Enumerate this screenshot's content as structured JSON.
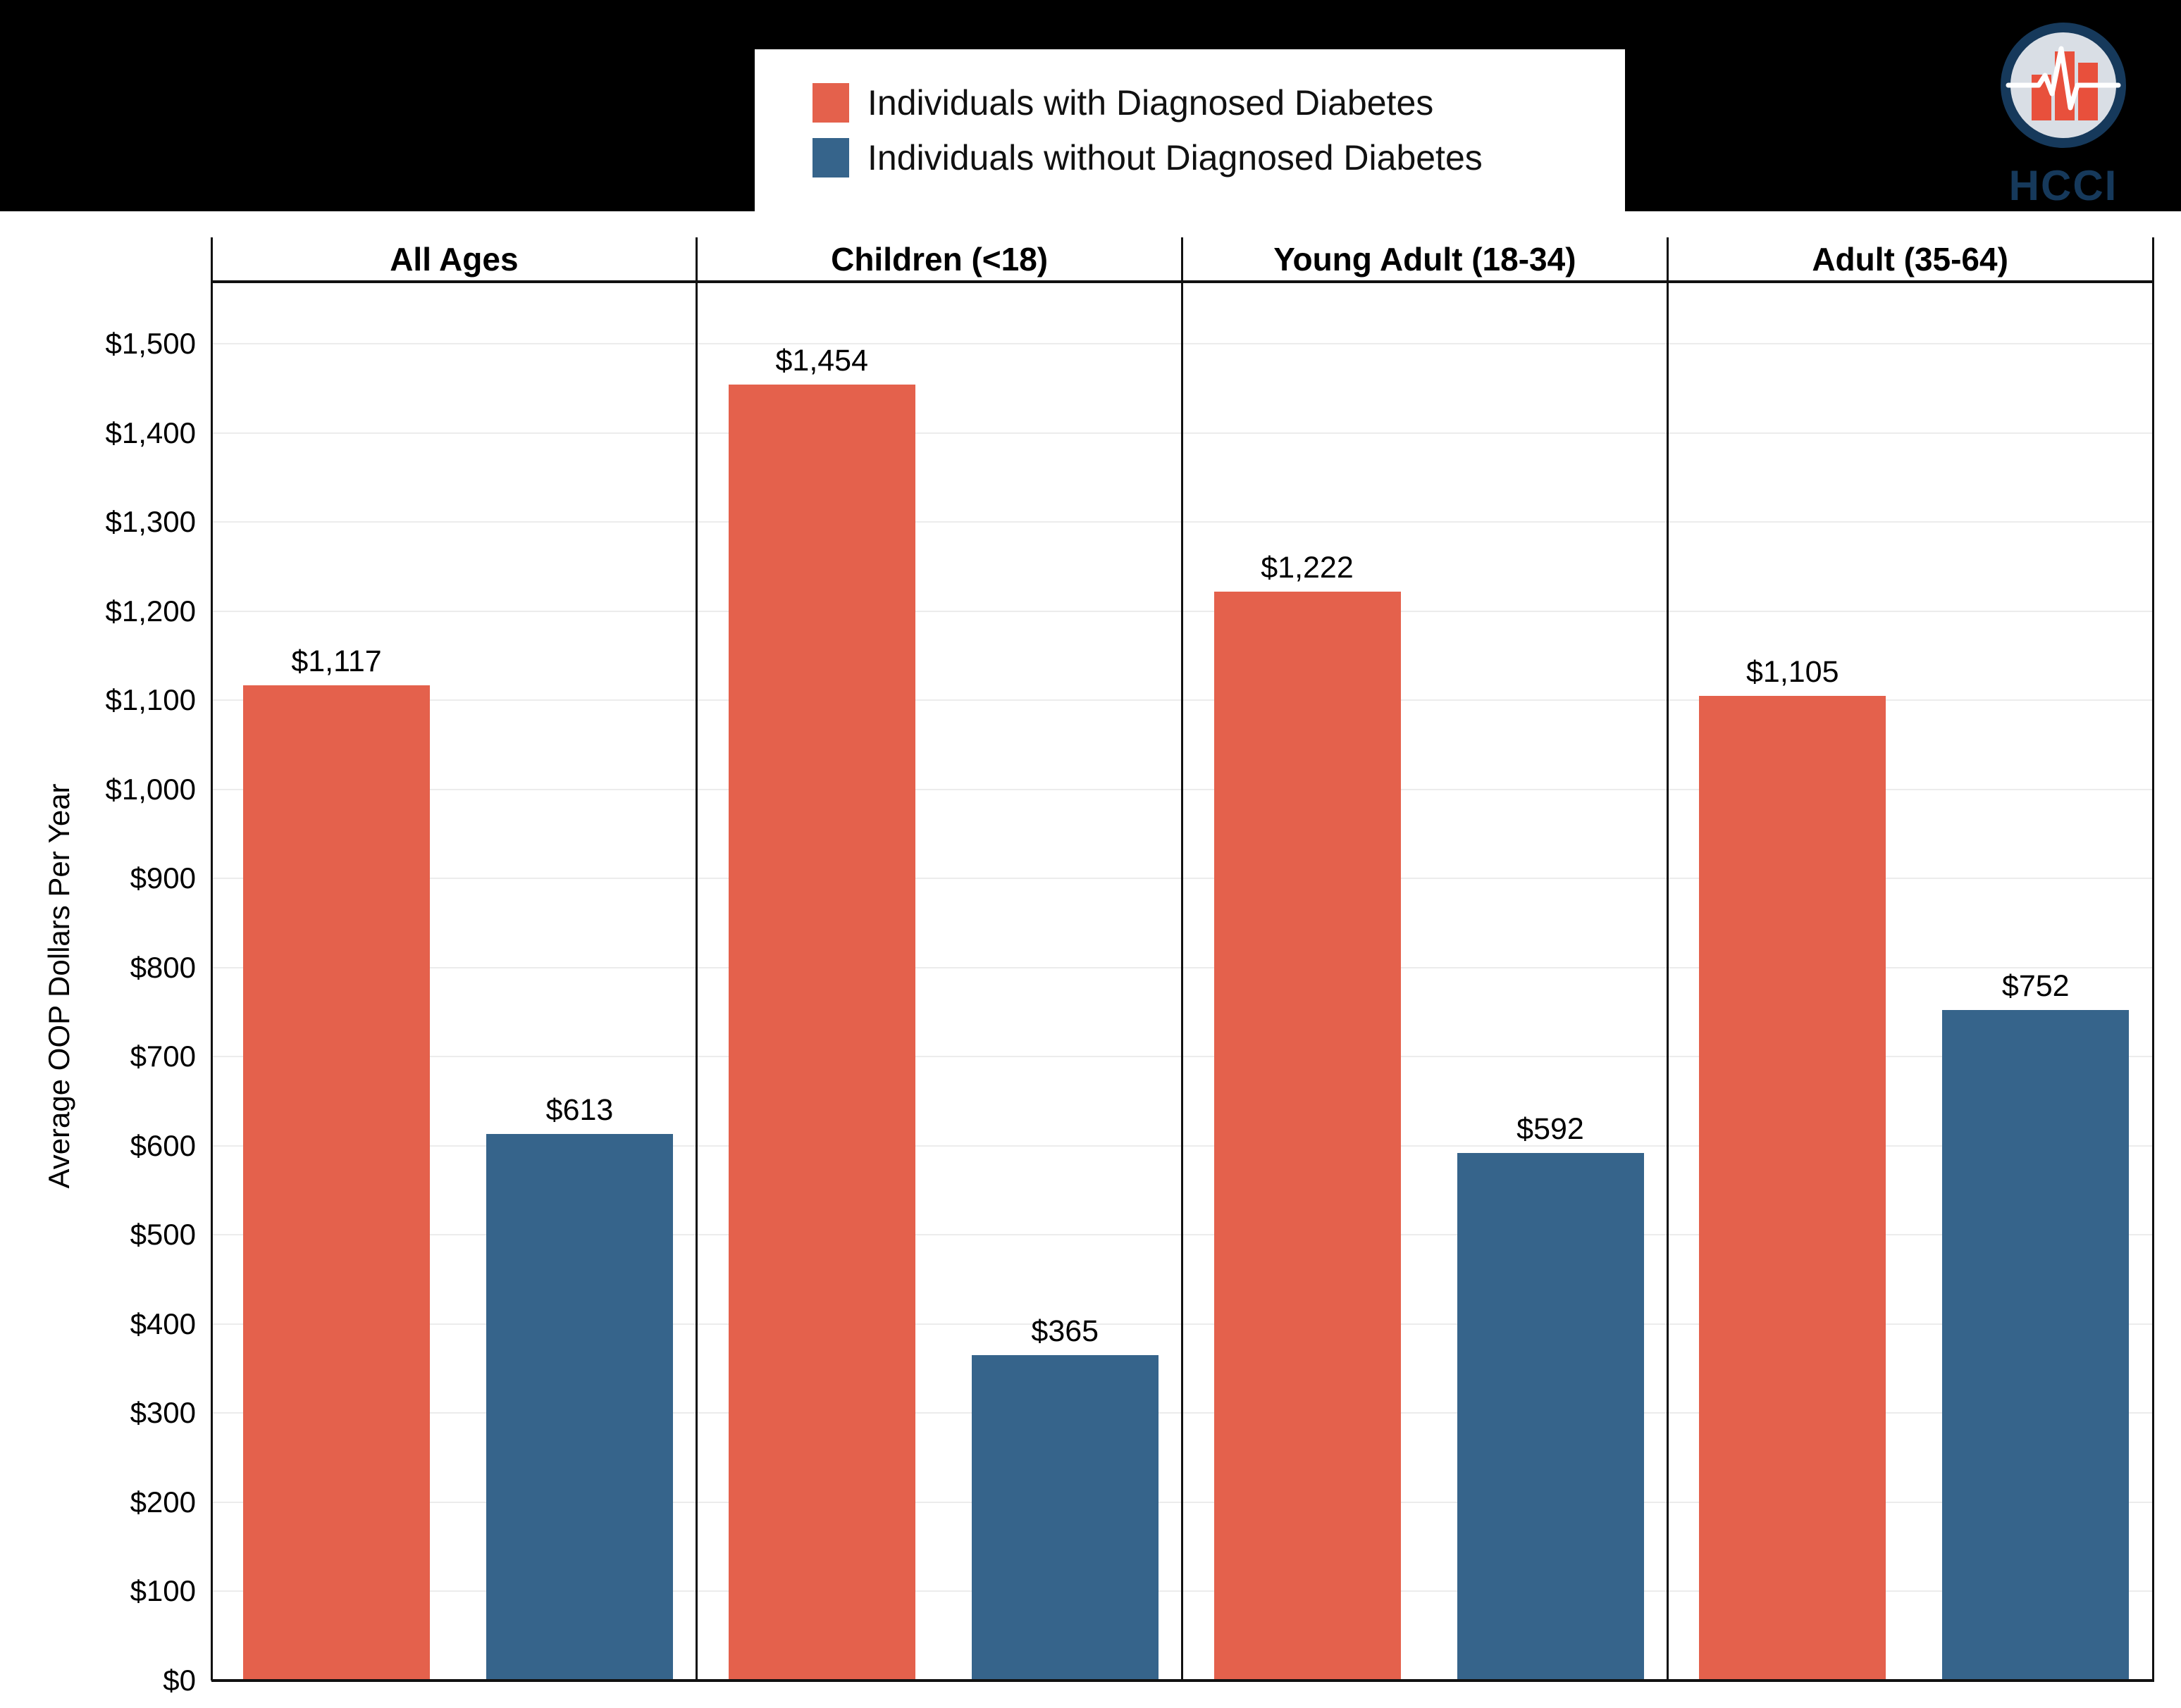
{
  "legend": {
    "items": [
      {
        "label": "Individuals with Diagnosed Diabetes",
        "color": "#E4614C"
      },
      {
        "label": "Individuals without Diagnosed Diabetes",
        "color": "#36648B"
      }
    ]
  },
  "logo": {
    "text": "HCCI",
    "navy": "#16395B",
    "light_fill": "#D9DEE5",
    "orange": "#E8503C"
  },
  "chart_data": {
    "type": "bar",
    "title": "",
    "ylabel": "Average OOP Dollars Per Year",
    "ylim": [
      0,
      1500
    ],
    "ytick_step": 100,
    "yticks": [
      "$0",
      "$100",
      "$200",
      "$300",
      "$400",
      "$500",
      "$600",
      "$700",
      "$800",
      "$900",
      "$1,000",
      "$1,100",
      "$1,200",
      "$1,300",
      "$1,400",
      "$1,500"
    ],
    "grid": true,
    "legend_position": "top-center",
    "categories": [
      "All Ages",
      "Children (<18)",
      "Young Adult (18-34)",
      "Adult (35-64)"
    ],
    "series": [
      {
        "name": "Individuals with Diagnosed Diabetes",
        "color": "#E4614C",
        "values": [
          1117,
          1454,
          1222,
          1105
        ],
        "labels": [
          "$1,117",
          "$1,454",
          "$1,222",
          "$1,105"
        ]
      },
      {
        "name": "Individuals without Diagnosed Diabetes",
        "color": "#36648B",
        "values": [
          613,
          365,
          592,
          752
        ],
        "labels": [
          "$613",
          "$365",
          "$592",
          "$752"
        ]
      }
    ]
  }
}
